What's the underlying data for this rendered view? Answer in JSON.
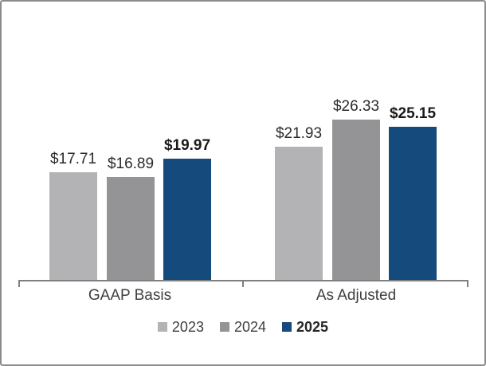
{
  "chart_data": {
    "type": "bar",
    "categories": [
      "GAAP Basis",
      "As Adjusted"
    ],
    "series": [
      {
        "name": "2023",
        "values": [
          17.71,
          21.93
        ],
        "labels": [
          "$17.71",
          "$21.93"
        ],
        "color": "#b3b3b6",
        "bold": false
      },
      {
        "name": "2024",
        "values": [
          16.89,
          26.33
        ],
        "labels": [
          "$16.89",
          "$26.33"
        ],
        "color": "#949497",
        "bold": false
      },
      {
        "name": "2025",
        "values": [
          19.97,
          25.15
        ],
        "labels": [
          "$19.97",
          "$25.15"
        ],
        "color": "#144a7c",
        "bold": true
      }
    ],
    "value_prefix": "$",
    "title": "",
    "xlabel": "",
    "ylabel": "",
    "ylim": [
      0,
      28
    ],
    "grid": false,
    "data_labels": true,
    "legend_position": "bottom",
    "axis_color": "#7f7f7f",
    "background": "#ffffff",
    "frame_border_color": "#8c8c8c"
  }
}
